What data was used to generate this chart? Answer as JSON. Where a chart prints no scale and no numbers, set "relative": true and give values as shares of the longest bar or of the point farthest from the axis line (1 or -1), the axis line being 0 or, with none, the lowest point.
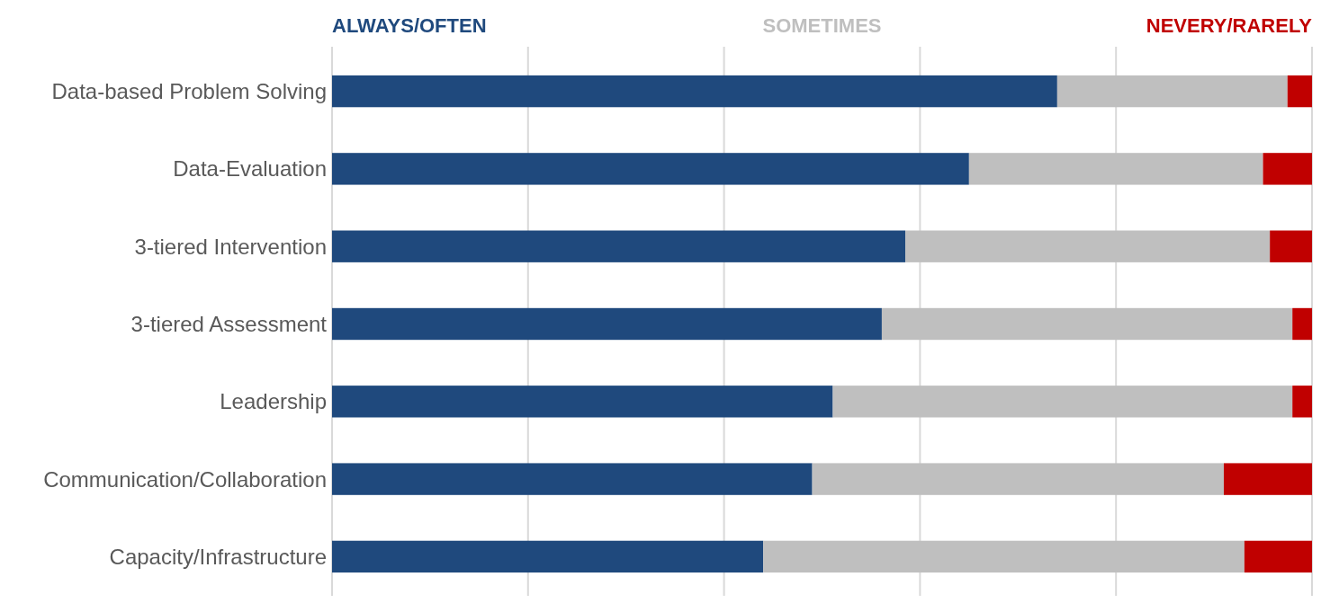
{
  "chart_data": {
    "type": "bar",
    "orientation": "horizontal",
    "stacked": true,
    "relative": true,
    "grid": true,
    "legend": "top",
    "categories": [
      "Data-based Problem Solving",
      "Data-Evaluation",
      "3-tiered Intervention",
      "3-tiered Assessment",
      "Leadership",
      "Communication/Collaboration",
      "Capacity/Infrastructure"
    ],
    "series": [
      {
        "name": "ALWAYS/OFTEN",
        "color": "#1f497d",
        "values": [
          0.74,
          0.65,
          0.585,
          0.561,
          0.511,
          0.49,
          0.44
        ]
      },
      {
        "name": "SOMETIMES",
        "color": "#bfbfbf",
        "values": [
          0.235,
          0.3,
          0.372,
          0.419,
          0.469,
          0.42,
          0.491
        ]
      },
      {
        "name": "NEVERY/RARELY",
        "color": "#c00000",
        "values": [
          0.025,
          0.05,
          0.043,
          0.02,
          0.02,
          0.09,
          0.069
        ]
      }
    ]
  }
}
